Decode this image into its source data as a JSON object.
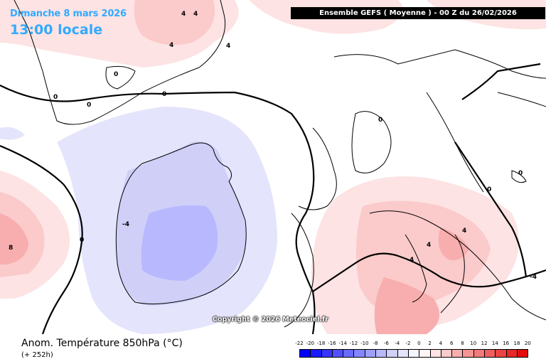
{
  "header": {
    "date_label": "Dimanche 8 mars 2026",
    "time_label": "13:00 locale",
    "model_run": "Ensemble GEFS  ( Moyenne )  -  00 Z du 26/02/2026"
  },
  "copyright": "Copyright © 2026 Meteociel.fr",
  "footer": {
    "parameter": "Anom. Température 850hPa (°C)",
    "lead_time": "(+ 252h)"
  },
  "scale": {
    "labels": [
      "-22",
      "-20",
      "-18",
      "-16",
      "-14",
      "-12",
      "-10",
      "-8",
      "-6",
      "-4",
      "-2",
      "0",
      "2",
      "4",
      "6",
      "8",
      "10",
      "12",
      "14",
      "16",
      "18",
      "20"
    ],
    "colors": [
      "#0000ff",
      "#1a1aff",
      "#3535ff",
      "#5050ff",
      "#6a6aff",
      "#8585ff",
      "#9f9fff",
      "#b8b8ff",
      "#cfcff8",
      "#e4e4fc",
      "#f4f4fe",
      "#fff4f4",
      "#fde3e3",
      "#fbcaca",
      "#f8aeae",
      "#f59494",
      "#f27a7a",
      "#ef5f5f",
      "#ec4343",
      "#e82727",
      "#e40b0b"
    ]
  },
  "contour_labels": [
    {
      "text": "0"
    },
    {
      "text": "0"
    },
    {
      "text": "0"
    },
    {
      "text": "0"
    },
    {
      "text": "0"
    },
    {
      "text": "0"
    },
    {
      "text": "-4"
    },
    {
      "text": "8"
    },
    {
      "text": "4"
    },
    {
      "text": "4"
    },
    {
      "text": "4"
    },
    {
      "text": "4"
    },
    {
      "text": "4"
    },
    {
      "text": "0"
    },
    {
      "text": "0"
    },
    {
      "text": "-4"
    },
    {
      "text": "4"
    },
    {
      "text": "4"
    }
  ]
}
